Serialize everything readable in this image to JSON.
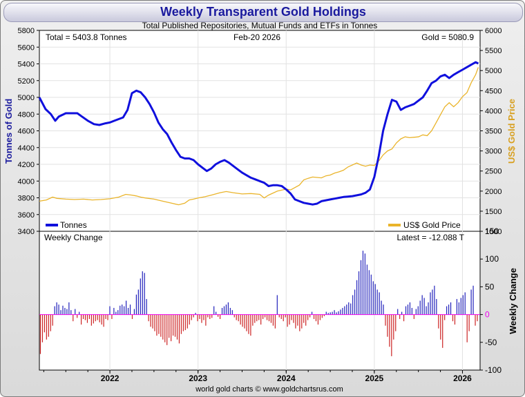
{
  "chart_data": {
    "type": "line",
    "title": "Weekly Transparent Gold Holdings",
    "subtitle": "Total Published Repositories, Mutual Funds and ETFs in Tonnes",
    "total_label": "Total = 5403.8 Tonnes",
    "date_label": "Feb-20  2026",
    "gold_label": "Gold = 5080.9",
    "ylabel_left": "Tonnes of Gold",
    "ylabel_right": "US$ Gold Price",
    "ylabel_change": "Weekly Change",
    "change_title": "Weekly Change",
    "latest_label": "Latest = -12.088 T",
    "footer": "world gold charts © www.goldchartsrus.com",
    "legend": {
      "tonnes": "Tonnes",
      "price": "US$ Gold Price"
    },
    "colors": {
      "tonnes": "#1010dd",
      "price": "#eab42a",
      "bar_pos": "#2020bb",
      "bar_neg": "#cc2222",
      "zero": "#ee00ee",
      "title": "#1a1a9e",
      "price_axis": "#d8a020"
    },
    "x_range": [
      2021.2,
      2026.2
    ],
    "x_ticks": [
      "2022",
      "2023",
      "2024",
      "2025",
      "2026"
    ],
    "x_tick_values": [
      2022,
      2023,
      2024,
      2025,
      2026
    ],
    "ylim_left": [
      3400,
      5800
    ],
    "left_ticks": [
      "3400",
      "3600",
      "3800",
      "4000",
      "4200",
      "4400",
      "4600",
      "4800",
      "5000",
      "5200",
      "5400",
      "5600",
      "5800"
    ],
    "ylim_right": [
      1000,
      6000
    ],
    "right_ticks": [
      "1000",
      "1500",
      "2000",
      "2500",
      "3000",
      "3500",
      "4000",
      "4500",
      "5000",
      "5500",
      "6000"
    ],
    "ylim_change": [
      -100,
      150
    ],
    "change_ticks": [
      "-100",
      "-50",
      "0",
      "50",
      "100",
      "150"
    ],
    "tonnes": [
      [
        2021.2,
        5000
      ],
      [
        2021.27,
        4860
      ],
      [
        2021.33,
        4800
      ],
      [
        2021.38,
        4720
      ],
      [
        2021.42,
        4770
      ],
      [
        2021.5,
        4810
      ],
      [
        2021.58,
        4810
      ],
      [
        2021.63,
        4810
      ],
      [
        2021.67,
        4780
      ],
      [
        2021.75,
        4720
      ],
      [
        2021.82,
        4680
      ],
      [
        2021.88,
        4670
      ],
      [
        2021.95,
        4690
      ],
      [
        2022.0,
        4700
      ],
      [
        2022.05,
        4720
      ],
      [
        2022.1,
        4740
      ],
      [
        2022.15,
        4760
      ],
      [
        2022.2,
        4850
      ],
      [
        2022.25,
        5050
      ],
      [
        2022.3,
        5080
      ],
      [
        2022.35,
        5060
      ],
      [
        2022.4,
        5000
      ],
      [
        2022.45,
        4920
      ],
      [
        2022.5,
        4820
      ],
      [
        2022.55,
        4700
      ],
      [
        2022.6,
        4620
      ],
      [
        2022.65,
        4560
      ],
      [
        2022.7,
        4460
      ],
      [
        2022.75,
        4370
      ],
      [
        2022.8,
        4290
      ],
      [
        2022.85,
        4270
      ],
      [
        2022.9,
        4270
      ],
      [
        2022.95,
        4250
      ],
      [
        2023.0,
        4200
      ],
      [
        2023.05,
        4160
      ],
      [
        2023.1,
        4120
      ],
      [
        2023.15,
        4150
      ],
      [
        2023.2,
        4200
      ],
      [
        2023.25,
        4230
      ],
      [
        2023.3,
        4250
      ],
      [
        2023.35,
        4220
      ],
      [
        2023.4,
        4180
      ],
      [
        2023.45,
        4140
      ],
      [
        2023.5,
        4100
      ],
      [
        2023.55,
        4070
      ],
      [
        2023.6,
        4040
      ],
      [
        2023.65,
        4020
      ],
      [
        2023.7,
        4000
      ],
      [
        2023.75,
        3980
      ],
      [
        2023.8,
        3940
      ],
      [
        2023.85,
        3950
      ],
      [
        2023.9,
        3950
      ],
      [
        2023.95,
        3940
      ],
      [
        2024.0,
        3900
      ],
      [
        2024.05,
        3850
      ],
      [
        2024.1,
        3780
      ],
      [
        2024.15,
        3760
      ],
      [
        2024.2,
        3740
      ],
      [
        2024.25,
        3730
      ],
      [
        2024.3,
        3720
      ],
      [
        2024.35,
        3730
      ],
      [
        2024.4,
        3760
      ],
      [
        2024.45,
        3770
      ],
      [
        2024.5,
        3780
      ],
      [
        2024.55,
        3790
      ],
      [
        2024.6,
        3800
      ],
      [
        2024.65,
        3810
      ],
      [
        2024.7,
        3815
      ],
      [
        2024.75,
        3820
      ],
      [
        2024.8,
        3830
      ],
      [
        2024.85,
        3840
      ],
      [
        2024.9,
        3860
      ],
      [
        2024.95,
        3900
      ],
      [
        2025.0,
        4050
      ],
      [
        2025.05,
        4300
      ],
      [
        2025.1,
        4600
      ],
      [
        2025.15,
        4800
      ],
      [
        2025.2,
        4970
      ],
      [
        2025.25,
        4950
      ],
      [
        2025.3,
        4850
      ],
      [
        2025.35,
        4880
      ],
      [
        2025.4,
        4900
      ],
      [
        2025.45,
        4920
      ],
      [
        2025.5,
        4960
      ],
      [
        2025.55,
        5000
      ],
      [
        2025.6,
        5080
      ],
      [
        2025.65,
        5170
      ],
      [
        2025.7,
        5200
      ],
      [
        2025.75,
        5250
      ],
      [
        2025.8,
        5270
      ],
      [
        2025.85,
        5230
      ],
      [
        2025.9,
        5270
      ],
      [
        2025.95,
        5300
      ],
      [
        2026.0,
        5330
      ],
      [
        2026.05,
        5360
      ],
      [
        2026.1,
        5390
      ],
      [
        2026.15,
        5420
      ],
      [
        2026.18,
        5404
      ]
    ],
    "price": [
      [
        2021.2,
        1750
      ],
      [
        2021.28,
        1780
      ],
      [
        2021.35,
        1850
      ],
      [
        2021.4,
        1820
      ],
      [
        2021.5,
        1800
      ],
      [
        2021.6,
        1790
      ],
      [
        2021.7,
        1800
      ],
      [
        2021.8,
        1780
      ],
      [
        2021.9,
        1790
      ],
      [
        2022.0,
        1810
      ],
      [
        2022.1,
        1850
      ],
      [
        2022.18,
        1920
      ],
      [
        2022.25,
        1900
      ],
      [
        2022.3,
        1880
      ],
      [
        2022.35,
        1850
      ],
      [
        2022.4,
        1830
      ],
      [
        2022.5,
        1800
      ],
      [
        2022.6,
        1750
      ],
      [
        2022.7,
        1700
      ],
      [
        2022.78,
        1660
      ],
      [
        2022.85,
        1700
      ],
      [
        2022.9,
        1780
      ],
      [
        2022.95,
        1800
      ],
      [
        2023.0,
        1830
      ],
      [
        2023.08,
        1860
      ],
      [
        2023.15,
        1900
      ],
      [
        2023.25,
        1960
      ],
      [
        2023.32,
        1990
      ],
      [
        2023.4,
        1960
      ],
      [
        2023.5,
        1930
      ],
      [
        2023.6,
        1940
      ],
      [
        2023.7,
        1920
      ],
      [
        2023.75,
        1830
      ],
      [
        2023.8,
        1900
      ],
      [
        2023.9,
        2000
      ],
      [
        2024.0,
        2050
      ],
      [
        2024.05,
        2030
      ],
      [
        2024.15,
        2150
      ],
      [
        2024.2,
        2280
      ],
      [
        2024.25,
        2320
      ],
      [
        2024.3,
        2350
      ],
      [
        2024.35,
        2340
      ],
      [
        2024.4,
        2330
      ],
      [
        2024.45,
        2380
      ],
      [
        2024.5,
        2400
      ],
      [
        2024.55,
        2450
      ],
      [
        2024.6,
        2480
      ],
      [
        2024.65,
        2520
      ],
      [
        2024.7,
        2600
      ],
      [
        2024.75,
        2650
      ],
      [
        2024.8,
        2700
      ],
      [
        2024.85,
        2650
      ],
      [
        2024.9,
        2620
      ],
      [
        2024.95,
        2650
      ],
      [
        2025.0,
        2640
      ],
      [
        2025.05,
        2750
      ],
      [
        2025.1,
        2900
      ],
      [
        2025.15,
        3000
      ],
      [
        2025.2,
        3050
      ],
      [
        2025.25,
        3200
      ],
      [
        2025.3,
        3300
      ],
      [
        2025.35,
        3350
      ],
      [
        2025.4,
        3330
      ],
      [
        2025.45,
        3340
      ],
      [
        2025.5,
        3350
      ],
      [
        2025.55,
        3400
      ],
      [
        2025.6,
        3380
      ],
      [
        2025.65,
        3500
      ],
      [
        2025.7,
        3700
      ],
      [
        2025.75,
        3900
      ],
      [
        2025.8,
        4100
      ],
      [
        2025.85,
        4200
      ],
      [
        2025.9,
        4100
      ],
      [
        2025.95,
        4200
      ],
      [
        2026.0,
        4350
      ],
      [
        2026.05,
        4450
      ],
      [
        2026.1,
        4700
      ],
      [
        2026.15,
        4900
      ],
      [
        2026.18,
        5081
      ]
    ],
    "weekly_change": [
      -71,
      -50,
      -32,
      -45,
      -40,
      -30,
      -20,
      15,
      22,
      18,
      8,
      16,
      12,
      10,
      22,
      8,
      -12,
      10,
      -6,
      5,
      -18,
      -8,
      -10,
      -15,
      -8,
      -20,
      -16,
      -12,
      -10,
      -14,
      -18,
      -22,
      -8,
      -10,
      15,
      -8,
      12,
      5,
      8,
      16,
      18,
      15,
      25,
      12,
      18,
      -8,
      10,
      36,
      45,
      65,
      78,
      75,
      28,
      -12,
      -22,
      -25,
      -30,
      -38,
      -35,
      -40,
      -45,
      -50,
      -55,
      -42,
      -48,
      -38,
      -40,
      -45,
      -52,
      -35,
      -30,
      -28,
      -25,
      -18,
      -10,
      -5,
      3,
      -12,
      -8,
      -15,
      -10,
      -20,
      -5,
      -8,
      -6,
      15,
      5,
      -4,
      -8,
      12,
      15,
      18,
      22,
      12,
      8,
      -5,
      -10,
      -12,
      -18,
      -22,
      -25,
      -30,
      -35,
      -38,
      -20,
      -15,
      -12,
      -10,
      -18,
      -8,
      -5,
      -10,
      -12,
      -15,
      -20,
      -25,
      35,
      -5,
      -8,
      -12,
      -5,
      -22,
      -18,
      -10,
      -15,
      -25,
      -20,
      -30,
      -25,
      -15,
      -20,
      -10,
      -5,
      5,
      -8,
      -12,
      -18,
      -10,
      -6,
      -3,
      5,
      3,
      4,
      5,
      8,
      4,
      6,
      9,
      12,
      15,
      18,
      22,
      20,
      35,
      45,
      62,
      78,
      98,
      115,
      110,
      90,
      80,
      72,
      60,
      55,
      45,
      40,
      25,
      18,
      -20,
      -40,
      -58,
      -75,
      -45,
      -30,
      10,
      -8,
      5,
      -12,
      15,
      18,
      22,
      12,
      -8,
      10,
      15,
      25,
      35,
      30,
      15,
      22,
      40,
      45,
      52,
      28,
      -25,
      -45,
      -60,
      -10,
      15,
      18,
      22,
      -12,
      -18,
      28,
      22,
      30,
      35,
      40,
      -50,
      -30,
      45,
      52,
      -20,
      -12
    ]
  }
}
